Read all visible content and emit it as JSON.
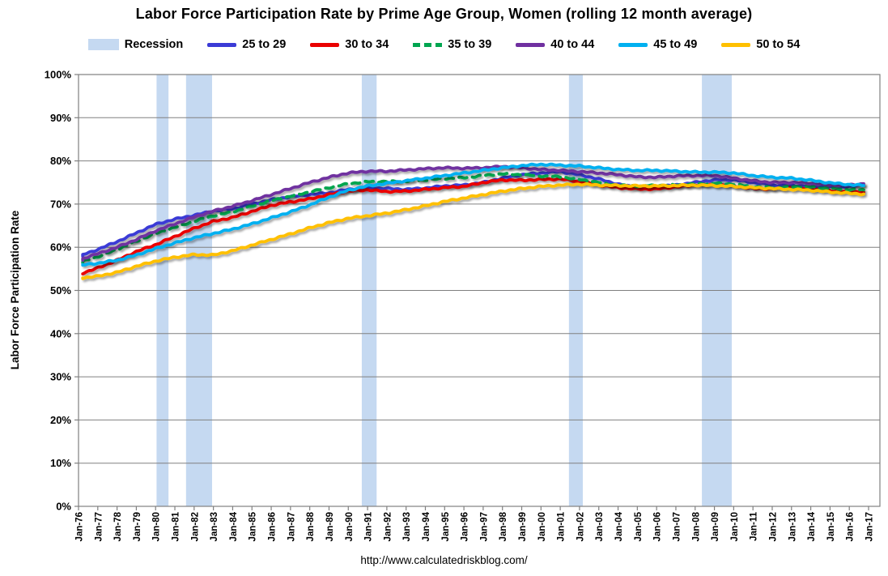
{
  "title": "Labor Force Participation Rate by Prime Age Group, Women (rolling 12 month average)",
  "footer": {
    "url": "http://www.calculatedriskblog.com/"
  },
  "legend": {
    "recession_label": "Recession",
    "recession_color": "#c5d9f1"
  },
  "chart_data": {
    "type": "line",
    "title": "Labor Force Participation Rate by Prime Age Group, Women (rolling 12 month average)",
    "xlabel": "",
    "ylabel": "Labor Force Participation Rate",
    "ylim": [
      0,
      100
    ],
    "grid": "horizontal",
    "legend_position": "top",
    "y_tick_labels": [
      "0%",
      "10%",
      "20%",
      "30%",
      "40%",
      "50%",
      "60%",
      "70%",
      "80%",
      "90%",
      "100%"
    ],
    "y_tick_values": [
      0,
      10,
      20,
      30,
      40,
      50,
      60,
      70,
      80,
      90,
      100
    ],
    "x_tick_labels": [
      "Jan-76",
      "Jan-77",
      "Jan-78",
      "Jan-79",
      "Jan-80",
      "Jan-81",
      "Jan-82",
      "Jan-83",
      "Jan-84",
      "Jan-85",
      "Jan-86",
      "Jan-87",
      "Jan-88",
      "Jan-89",
      "Jan-90",
      "Jan-91",
      "Jan-92",
      "Jan-93",
      "Jan-94",
      "Jan-95",
      "Jan-96",
      "Jan-97",
      "Jan-98",
      "Jan-99",
      "Jan-00",
      "Jan-01",
      "Jan-02",
      "Jan-03",
      "Jan-04",
      "Jan-05",
      "Jan-06",
      "Jan-07",
      "Jan-08",
      "Jan-09",
      "Jan-10",
      "Jan-11",
      "Jan-12",
      "Jan-13",
      "Jan-14",
      "Jan-15",
      "Jan-16",
      "Jan-17"
    ],
    "x_tick_years": [
      1976,
      1977,
      1978,
      1979,
      1980,
      1981,
      1982,
      1983,
      1984,
      1985,
      1986,
      1987,
      1988,
      1989,
      1990,
      1991,
      1992,
      1993,
      1994,
      1995,
      1996,
      1997,
      1998,
      1999,
      2000,
      2001,
      2002,
      2003,
      2004,
      2005,
      2006,
      2007,
      2008,
      2009,
      2010,
      2011,
      2012,
      2013,
      2014,
      2015,
      2016,
      2017
    ],
    "recession_label": "Recession",
    "recession_color": "#c5d9f1",
    "recession_bands_years": [
      [
        1980.05,
        1980.67
      ],
      [
        1981.58,
        1982.93
      ],
      [
        1990.7,
        1991.47
      ],
      [
        2001.45,
        2002.17
      ],
      [
        2008.35,
        2009.9
      ]
    ],
    "series_x_start_year": 1976,
    "series_x_step_years": 1,
    "series_final_point_year": 2016.75,
    "series": [
      {
        "name": "25 to 29",
        "color": "#3b3bd6",
        "dash": false,
        "values": [
          57.9,
          59.5,
          61.3,
          63.3,
          65.3,
          66.5,
          67.4,
          68.4,
          68.9,
          70.0,
          71.0,
          71.7,
          72.2,
          72.6,
          73.4,
          73.8,
          73.6,
          73.4,
          73.7,
          74.2,
          74.4,
          75.0,
          76.0,
          76.8,
          77.2,
          77.5,
          76.8,
          75.8,
          74.6,
          73.8,
          74.0,
          74.4,
          75.0,
          75.6,
          75.6,
          75.0,
          74.4,
          74.3,
          74.2,
          73.9,
          74.1,
          74.4
        ]
      },
      {
        "name": "30 to 34",
        "color": "#ea0000",
        "dash": false,
        "values": [
          53.7,
          55.2,
          57.0,
          59.0,
          60.6,
          62.5,
          64.4,
          66.0,
          66.9,
          68.3,
          69.7,
          70.5,
          71.2,
          72.2,
          73.0,
          73.3,
          72.9,
          73.0,
          73.4,
          73.8,
          74.1,
          75.0,
          75.6,
          75.5,
          75.7,
          75.8,
          75.2,
          74.4,
          73.8,
          73.5,
          73.5,
          74.0,
          74.4,
          74.5,
          74.2,
          73.6,
          73.5,
          73.8,
          73.5,
          73.1,
          72.9,
          72.8
        ]
      },
      {
        "name": "35 to 39",
        "color": "#00a550",
        "dash": true,
        "values": [
          56.4,
          57.8,
          59.5,
          61.4,
          63.2,
          64.6,
          66.0,
          67.3,
          68.2,
          69.5,
          70.8,
          71.8,
          72.8,
          73.8,
          74.7,
          75.2,
          75.2,
          75.3,
          75.6,
          75.9,
          76.1,
          76.6,
          77.0,
          76.8,
          76.5,
          76.3,
          75.7,
          75.0,
          74.3,
          74.2,
          74.3,
          74.4,
          74.6,
          74.8,
          74.6,
          74.0,
          73.8,
          74.0,
          74.0,
          73.6,
          73.4,
          73.3
        ]
      },
      {
        "name": "40 to 44",
        "color": "#7030a0",
        "dash": false,
        "values": [
          57.1,
          58.5,
          60.0,
          61.8,
          63.8,
          65.4,
          67.0,
          68.4,
          69.5,
          70.8,
          72.2,
          73.6,
          75.0,
          76.2,
          77.2,
          77.6,
          77.6,
          77.9,
          78.2,
          78.4,
          78.3,
          78.4,
          78.7,
          78.4,
          78.0,
          77.8,
          77.5,
          77.2,
          76.8,
          76.3,
          76.2,
          76.5,
          76.6,
          76.6,
          76.0,
          75.4,
          75.0,
          75.0,
          74.8,
          74.4,
          74.4,
          74.7
        ]
      },
      {
        "name": "45 to 49",
        "color": "#00b0f0",
        "dash": false,
        "values": [
          55.8,
          56.3,
          57.0,
          58.2,
          59.7,
          61.0,
          62.2,
          63.2,
          64.2,
          65.4,
          66.8,
          68.2,
          69.8,
          71.6,
          73.2,
          74.2,
          74.8,
          75.4,
          76.0,
          76.6,
          77.2,
          77.8,
          78.4,
          78.9,
          79.2,
          79.0,
          78.8,
          78.4,
          78.0,
          77.8,
          77.8,
          77.6,
          77.4,
          77.4,
          77.2,
          76.6,
          76.2,
          76.0,
          75.5,
          74.9,
          74.5,
          74.3
        ]
      },
      {
        "name": "50 to 54",
        "color": "#ffc000",
        "dash": false,
        "values": [
          52.8,
          53.3,
          54.2,
          55.6,
          56.8,
          57.7,
          58.3,
          58.2,
          59.2,
          60.5,
          61.8,
          63.1,
          64.5,
          65.7,
          66.7,
          67.3,
          67.9,
          68.7,
          69.6,
          70.6,
          71.4,
          72.2,
          73.0,
          73.6,
          74.1,
          74.4,
          74.6,
          74.4,
          74.3,
          74.2,
          74.2,
          74.3,
          74.4,
          74.3,
          74.1,
          73.8,
          73.6,
          73.4,
          73.2,
          72.8,
          72.5,
          72.3
        ]
      }
    ],
    "style": {
      "grid_color": "#808080",
      "axis_color": "#808080",
      "line_width": 3.8
    }
  }
}
